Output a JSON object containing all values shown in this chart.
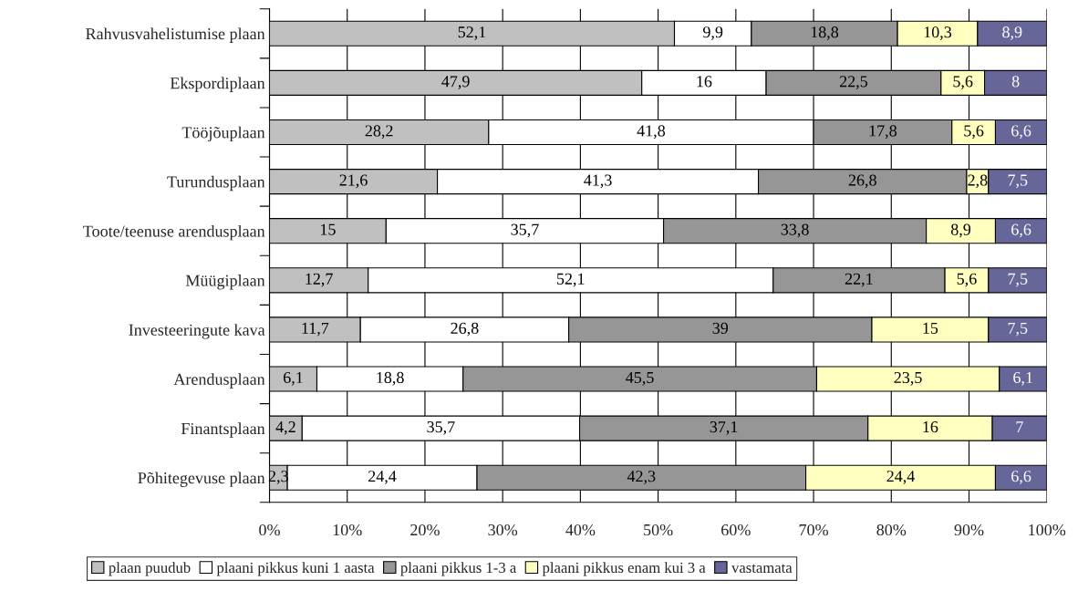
{
  "chart_data": {
    "type": "bar",
    "orientation": "horizontal",
    "stacked": true,
    "categories": [
      "Rahvusvahelistumise plaan",
      "Ekspordiplaan",
      "Tööjõuplaan",
      "Turundusplaan",
      "Toote/teenuse arendusplaan",
      "Müügiplaan",
      "Investeeringute kava",
      "Arendusplaan",
      "Finantsplaan",
      "Põhitegevuse plaan"
    ],
    "series": [
      {
        "name": "plaan puudub",
        "color": "#c0c0c0",
        "values": [
          52.1,
          47.9,
          28.2,
          21.6,
          15,
          12.7,
          11.7,
          6.1,
          4.2,
          2.3
        ],
        "value_labels": [
          "52,1",
          "47,9",
          "28,2",
          "21,6",
          "15",
          "12,7",
          "11,7",
          "6,1",
          "4,2",
          "2,3"
        ]
      },
      {
        "name": "plaani pikkus kuni 1 aasta",
        "color": "#ffffff",
        "values": [
          9.9,
          16,
          41.8,
          41.3,
          35.7,
          52.1,
          26.8,
          18.8,
          35.7,
          24.4
        ],
        "value_labels": [
          "9,9",
          "16",
          "41,8",
          "41,3",
          "35,7",
          "52,1",
          "26,8",
          "18,8",
          "35,7",
          "24,4"
        ]
      },
      {
        "name": "plaani pikkus 1-3 a",
        "color": "#969696",
        "values": [
          18.8,
          22.5,
          17.8,
          26.8,
          33.8,
          22.1,
          39,
          45.5,
          37.1,
          42.3
        ],
        "value_labels": [
          "18,8",
          "22,5",
          "17,8",
          "26,8",
          "33,8",
          "22,1",
          "39",
          "45,5",
          "37,1",
          "42,3"
        ]
      },
      {
        "name": "plaani pikkus enam kui 3 a",
        "color": "#ffffc0",
        "values": [
          10.3,
          5.6,
          5.6,
          2.8,
          8.9,
          5.6,
          15,
          23.5,
          16,
          24.4
        ],
        "value_labels": [
          "10,3",
          "5,6",
          "5,6",
          "2,8",
          "8,9",
          "5,6",
          "15",
          "23,5",
          "16",
          "24,4"
        ]
      },
      {
        "name": "vastamata",
        "color": "#666699",
        "values": [
          8.9,
          8,
          6.6,
          7.5,
          6.6,
          7.5,
          7.5,
          6.1,
          7,
          6.6
        ],
        "value_labels": [
          "8,9",
          "8",
          "6,6",
          "7,5",
          "6,6",
          "7,5",
          "7,5",
          "6,1",
          "7",
          "6,6"
        ]
      }
    ],
    "xlim": [
      0,
      100
    ],
    "xticks": [
      {
        "value": 0,
        "label": "0%"
      },
      {
        "value": 10,
        "label": "10%"
      },
      {
        "value": 20,
        "label": "20%"
      },
      {
        "value": 30,
        "label": "30%"
      },
      {
        "value": 40,
        "label": "40%"
      },
      {
        "value": 50,
        "label": "50%"
      },
      {
        "value": 60,
        "label": "60%"
      },
      {
        "value": 70,
        "label": "70%"
      },
      {
        "value": 80,
        "label": "80%"
      },
      {
        "value": 90,
        "label": "90%"
      },
      {
        "value": 100,
        "label": "100%"
      }
    ],
    "grid": "x",
    "legend": "bottom"
  }
}
